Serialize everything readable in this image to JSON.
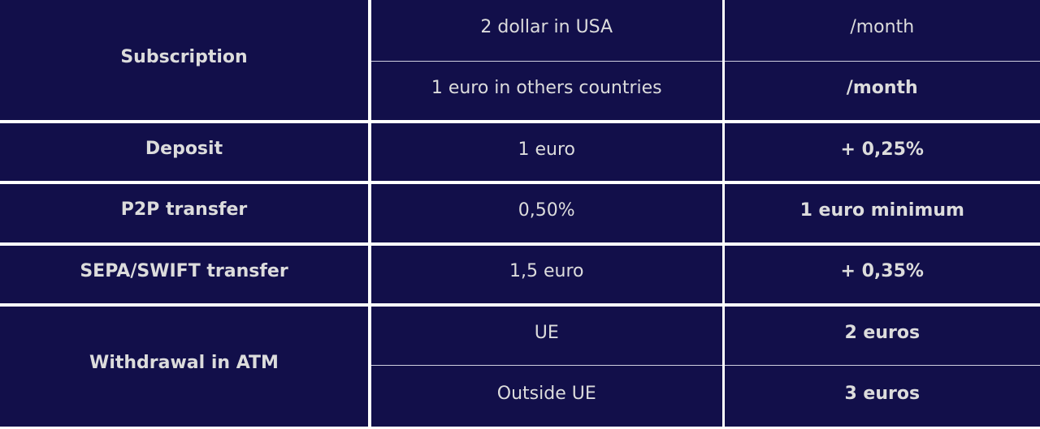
{
  "fees": {
    "subscription": {
      "label": "Subscription",
      "rows": [
        {
          "price": "2 dollar in USA",
          "unit": "/month"
        },
        {
          "price": "1 euro in others countries",
          "unit": "/month"
        }
      ]
    },
    "deposit": {
      "label": "Deposit",
      "price": "1 euro",
      "unit": "+ 0,25%"
    },
    "p2p": {
      "label": "P2P transfer",
      "price": "0,50%",
      "unit": "1 euro minimum"
    },
    "sepa": {
      "label": "SEPA/SWIFT transfer",
      "price": "1,5 euro",
      "unit": "+ 0,35%"
    },
    "atm": {
      "label": "Withdrawal in ATM",
      "rows": [
        {
          "price": "UE",
          "unit": "2 euros"
        },
        {
          "price": "Outside UE",
          "unit": "3 euros"
        }
      ]
    }
  },
  "colors": {
    "background": "#120f4a",
    "text": "#dcdcdc",
    "divider": "#ffffff"
  }
}
